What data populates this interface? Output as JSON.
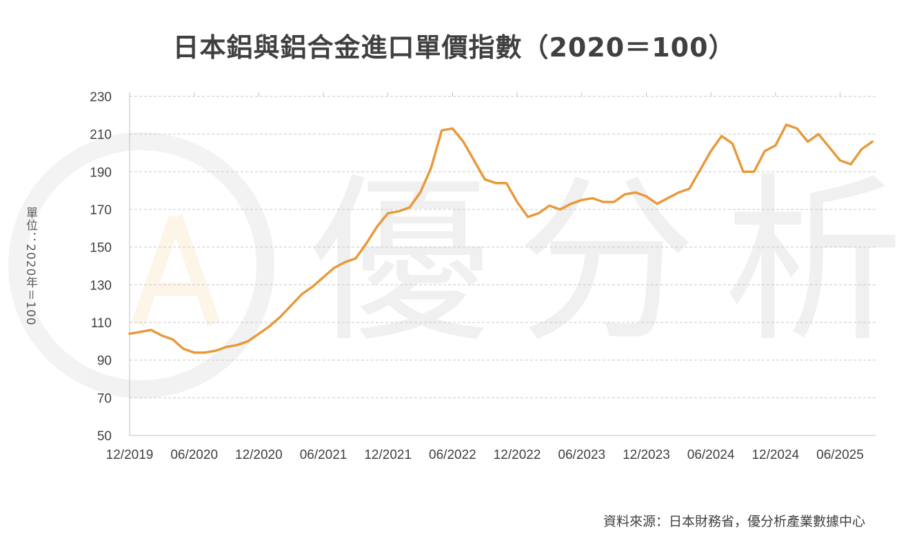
{
  "chart_data": {
    "type": "line",
    "title": "日本鋁與鋁合金進口單價指數（2020＝100）",
    "ylabel": "單位：2020年＝100",
    "ylim": [
      50,
      230
    ],
    "yticks": [
      50,
      70,
      90,
      110,
      130,
      150,
      170,
      190,
      210,
      230
    ],
    "xtick_labels": [
      "12/2019",
      "06/2020",
      "12/2020",
      "06/2021",
      "12/2021",
      "06/2022",
      "12/2022",
      "06/2023",
      "12/2023",
      "06/2024",
      "12/2024",
      "06/2025"
    ],
    "grid": true,
    "legend": "none",
    "line_color": "#E8993A",
    "x": [
      "2019-12",
      "2020-01",
      "2020-02",
      "2020-03",
      "2020-04",
      "2020-05",
      "2020-06",
      "2020-07",
      "2020-08",
      "2020-09",
      "2020-10",
      "2020-11",
      "2020-12",
      "2021-01",
      "2021-02",
      "2021-03",
      "2021-04",
      "2021-05",
      "2021-06",
      "2021-07",
      "2021-08",
      "2021-09",
      "2021-10",
      "2021-11",
      "2021-12",
      "2022-01",
      "2022-02",
      "2022-03",
      "2022-04",
      "2022-05",
      "2022-06",
      "2022-07",
      "2022-08",
      "2022-09",
      "2022-10",
      "2022-11",
      "2022-12",
      "2023-01",
      "2023-02",
      "2023-03",
      "2023-04",
      "2023-05",
      "2023-06",
      "2023-07",
      "2023-08",
      "2023-09",
      "2023-10",
      "2023-11",
      "2023-12",
      "2024-01",
      "2024-02",
      "2024-03",
      "2024-04",
      "2024-05",
      "2024-06",
      "2024-07",
      "2024-08",
      "2024-09",
      "2024-10",
      "2024-11",
      "2024-12",
      "2025-01",
      "2025-02",
      "2025-03",
      "2025-04",
      "2025-05",
      "2025-06",
      "2025-07",
      "2025-08",
      "2025-09"
    ],
    "series": [
      {
        "values": [
          104,
          105,
          106,
          103,
          101,
          96,
          94,
          94,
          95,
          97,
          98,
          100,
          104,
          108,
          113,
          119,
          125,
          129,
          134,
          139,
          142,
          144,
          152,
          161,
          168,
          169,
          171,
          179,
          192,
          212,
          213,
          206,
          196,
          186,
          184,
          184,
          174,
          166,
          168,
          172,
          170,
          173,
          175,
          176,
          174,
          174,
          178,
          179,
          177,
          173,
          176,
          179,
          181,
          191,
          201,
          209,
          205,
          190,
          190,
          201,
          204,
          215,
          213,
          206,
          210,
          203,
          196,
          194,
          202,
          206
        ]
      }
    ]
  },
  "source": "資料來源：日本財務省，優分析產業數據中心",
  "watermark": "優分析"
}
